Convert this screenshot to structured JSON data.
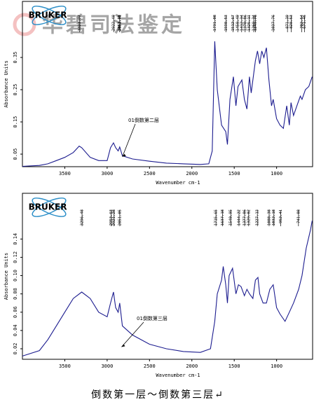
{
  "logo": "BRUKER",
  "watermark": "华碧司法鉴定",
  "caption": "倒数第一层～倒数第三层↵",
  "chart_data": [
    {
      "type": "line",
      "x_label": "Wavenumber cm-1",
      "y_label": "Absorbance Units",
      "annotation": "01倒数第二层",
      "color": "#1c1c8f",
      "xlim": [
        4000,
        575
      ],
      "ylim": [
        0.011,
        0.524
      ],
      "xticks": [
        3500,
        3000,
        2500,
        2000,
        1500,
        1000
      ],
      "yticks": [
        0.05,
        0.15,
        0.25,
        0.35
      ],
      "peaks": [
        3323.77,
        2922.48,
        2852.25,
        2851.51,
        1731.08,
        1598.53,
        1512.67,
        1458.49,
        1412.34,
        1370.86,
        1325.11,
        1269.34,
        1249.76,
        1037.76,
        871.39,
        828.53,
        702.54,
        671.45
      ],
      "x": [
        4000,
        3800,
        3700,
        3600,
        3500,
        3400,
        3330,
        3300,
        3200,
        3100,
        3000,
        2960,
        2925,
        2900,
        2870,
        2852,
        2820,
        2700,
        2500,
        2300,
        2100,
        1900,
        1800,
        1760,
        1730,
        1700,
        1650,
        1600,
        1580,
        1550,
        1510,
        1480,
        1455,
        1410,
        1380,
        1350,
        1320,
        1300,
        1270,
        1250,
        1225,
        1200,
        1175,
        1150,
        1120,
        1090,
        1060,
        1040,
        1000,
        960,
        920,
        880,
        850,
        830,
        800,
        760,
        720,
        700,
        660,
        620,
        580
      ],
      "values": [
        0.012,
        0.015,
        0.02,
        0.03,
        0.04,
        0.055,
        0.075,
        0.07,
        0.04,
        0.03,
        0.03,
        0.07,
        0.085,
        0.07,
        0.06,
        0.072,
        0.045,
        0.035,
        0.028,
        0.022,
        0.02,
        0.018,
        0.02,
        0.06,
        0.4,
        0.25,
        0.14,
        0.12,
        0.08,
        0.22,
        0.29,
        0.2,
        0.26,
        0.28,
        0.22,
        0.19,
        0.29,
        0.24,
        0.3,
        0.34,
        0.37,
        0.33,
        0.37,
        0.35,
        0.38,
        0.28,
        0.2,
        0.22,
        0.16,
        0.14,
        0.13,
        0.2,
        0.14,
        0.21,
        0.17,
        0.2,
        0.23,
        0.22,
        0.25,
        0.26,
        0.29
      ]
    },
    {
      "type": "line",
      "x_label": "Wavenumber cm-1",
      "y_label": "Absorbance Units",
      "annotation": "01倒数第三层",
      "color": "#1c1c8f",
      "xlim": [
        4000,
        575
      ],
      "ylim": [
        0.0085,
        0.19
      ],
      "xticks": [
        3500,
        3000,
        2500,
        2000,
        1500,
        1000
      ],
      "yticks": [
        0.02,
        0.04,
        0.06,
        0.08,
        {
          "value": 0.1,
          "label": "0.10"
        },
        0.12,
        0.14
      ],
      "peaks": [
        3296.48,
        2953.63,
        2921.28,
        2851.05,
        1715.65,
        1637.18,
        1540.95,
        1444.22,
        1377.86,
        1329.82,
        1227.13,
        1088.38,
        1032.18,
        952.41,
        741.88
      ],
      "x": [
        4000,
        3800,
        3700,
        3600,
        3500,
        3400,
        3300,
        3200,
        3100,
        3000,
        2960,
        2925,
        2900,
        2870,
        2852,
        2820,
        2700,
        2500,
        2300,
        2100,
        1900,
        1780,
        1730,
        1700,
        1650,
        1630,
        1600,
        1580,
        1560,
        1520,
        1480,
        1450,
        1420,
        1380,
        1350,
        1320,
        1280,
        1250,
        1220,
        1200,
        1160,
        1120,
        1080,
        1040,
        1000,
        960,
        900,
        850,
        800,
        740,
        700,
        650,
        600,
        580
      ],
      "values": [
        0.012,
        0.018,
        0.03,
        0.045,
        0.06,
        0.075,
        0.082,
        0.075,
        0.06,
        0.055,
        0.07,
        0.082,
        0.065,
        0.06,
        0.07,
        0.045,
        0.035,
        0.025,
        0.02,
        0.017,
        0.016,
        0.02,
        0.05,
        0.08,
        0.095,
        0.11,
        0.09,
        0.07,
        0.1,
        0.108,
        0.08,
        0.09,
        0.088,
        0.078,
        0.085,
        0.08,
        0.075,
        0.095,
        0.098,
        0.08,
        0.07,
        0.07,
        0.085,
        0.09,
        0.065,
        0.058,
        0.05,
        0.06,
        0.07,
        0.085,
        0.1,
        0.13,
        0.15,
        0.16
      ]
    }
  ]
}
